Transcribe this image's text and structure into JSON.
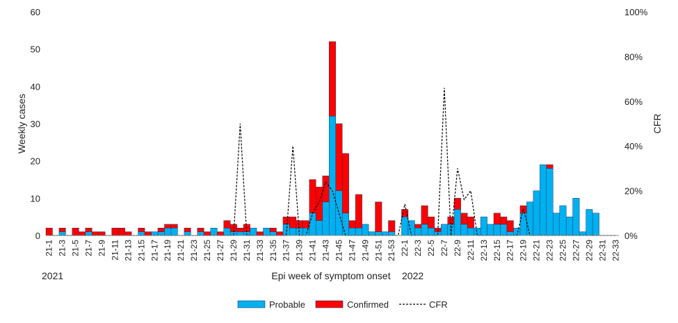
{
  "chart_data": {
    "type": "bar",
    "stacked": true,
    "ylabel": "Weekly cases",
    "y2label": "CFR",
    "xlabel": "Epi week of symptom onset",
    "year_labels": [
      "2021",
      "2022"
    ],
    "ylim": [
      0,
      60
    ],
    "yticks": [
      0,
      10,
      20,
      30,
      40,
      50,
      60
    ],
    "y2lim": [
      0,
      100
    ],
    "y2ticks": [
      "0%",
      "20%",
      "40%",
      "60%",
      "80%",
      "100%"
    ],
    "grid": false,
    "legend_position": "bottom",
    "colors": {
      "probable": "#00B0F0",
      "confirmed": "#FF0000",
      "cfr": "#000000",
      "bar_edge": "#1F3864"
    },
    "categories": [
      "21-1",
      "21-2",
      "21-3",
      "21-4",
      "21-5",
      "21-6",
      "21-7",
      "21-8",
      "21-9",
      "21-10",
      "21-11",
      "21-12",
      "21-13",
      "21-14",
      "21-15",
      "21-16",
      "21-17",
      "21-18",
      "21-19",
      "21-20",
      "21-21",
      "21-22",
      "21-23",
      "21-24",
      "21-25",
      "21-26",
      "21-27",
      "21-28",
      "21-29",
      "21-30",
      "21-31",
      "21-32",
      "21-33",
      "21-34",
      "21-35",
      "21-36",
      "21-37",
      "21-38",
      "21-39",
      "21-40",
      "21-41",
      "21-42",
      "21-43",
      "21-44",
      "21-45",
      "21-46",
      "21-47",
      "21-48",
      "21-49",
      "21-50",
      "21-51",
      "21-52",
      "21-53",
      "21-54",
      "22-1",
      "22-2",
      "22-3",
      "22-4",
      "22-5",
      "22-6",
      "22-7",
      "22-8",
      "22-9",
      "22-10",
      "22-11",
      "22-12",
      "22-13",
      "22-14",
      "22-15",
      "22-16",
      "22-17",
      "22-18",
      "22-19",
      "22-20",
      "22-21",
      "22-22",
      "22-23",
      "22-24",
      "22-25",
      "22-26",
      "22-27",
      "22-28",
      "22-29",
      "22-30",
      "22-31",
      "22-32",
      "22-33"
    ],
    "tick_labels": [
      "21-1",
      "21-3",
      "21-5",
      "21-7",
      "21-9",
      "21-11",
      "21-13",
      "21-15",
      "21-17",
      "21-19",
      "21-21",
      "21-23",
      "21-25",
      "21-27",
      "21-29",
      "21-31",
      "21-33",
      "21-35",
      "21-37",
      "21-39",
      "21-41",
      "21-43",
      "21-45",
      "21-47",
      "21-49",
      "21-51",
      "21-53",
      "22-1",
      "22-3",
      "22-5",
      "22-7",
      "22-9",
      "22-11",
      "22-13",
      "22-15",
      "22-17",
      "22-19",
      "22-21",
      "22-23",
      "22-25",
      "22-27",
      "22-29",
      "22-31",
      "22-33"
    ],
    "series": [
      {
        "name": "Probable",
        "values": [
          0,
          0,
          1,
          0,
          0,
          0,
          1,
          0,
          0,
          0,
          0,
          0,
          0,
          0,
          1,
          0,
          1,
          1,
          2,
          2,
          0,
          1,
          0,
          1,
          0,
          2,
          0,
          2,
          1,
          1,
          1,
          2,
          0,
          2,
          1,
          0,
          3,
          2,
          2,
          2,
          6,
          4,
          9,
          32,
          12,
          6,
          2,
          2,
          3,
          1,
          1,
          1,
          1,
          0,
          5,
          4,
          2,
          3,
          2,
          1,
          3,
          3,
          7,
          3,
          2,
          2,
          5,
          3,
          3,
          3,
          1,
          2,
          6,
          9,
          12,
          19,
          18,
          6,
          8,
          5,
          10,
          1,
          7,
          6,
          0,
          0,
          0
        ]
      },
      {
        "name": "Confirmed",
        "values": [
          2,
          0,
          1,
          0,
          2,
          1,
          1,
          1,
          1,
          0,
          2,
          2,
          1,
          0,
          1,
          1,
          0,
          1,
          1,
          1,
          0,
          1,
          0,
          1,
          1,
          0,
          1,
          2,
          2,
          1,
          2,
          0,
          1,
          0,
          1,
          1,
          2,
          3,
          2,
          2,
          9,
          9,
          7,
          20,
          18,
          16,
          2,
          9,
          0,
          0,
          8,
          0,
          3,
          0,
          2,
          0,
          1,
          5,
          3,
          1,
          0,
          2,
          3,
          3,
          3,
          0,
          0,
          0,
          3,
          2,
          3,
          0,
          2,
          0,
          0,
          0,
          1,
          0,
          0,
          0,
          0,
          0,
          0,
          0,
          0,
          0,
          0
        ]
      },
      {
        "name": "CFR",
        "type": "line",
        "dashed": true,
        "values": [
          0,
          0,
          0,
          0,
          0,
          0,
          0,
          0,
          0,
          0,
          0,
          0,
          0,
          0,
          0,
          0,
          0,
          0,
          0,
          0,
          0,
          0,
          0,
          0,
          0,
          0,
          0,
          0,
          0,
          50,
          0,
          0,
          0,
          0,
          0,
          0,
          0,
          40,
          0,
          0,
          10,
          15,
          24,
          20,
          10,
          0,
          0,
          0,
          0,
          0,
          0,
          0,
          0,
          0,
          14,
          0,
          0,
          0,
          0,
          0,
          66,
          0,
          30,
          16,
          20,
          0,
          0,
          0,
          0,
          0,
          0,
          0,
          12,
          0,
          0,
          0,
          0,
          0,
          0,
          0,
          0,
          0,
          0,
          0,
          0,
          0,
          0
        ]
      }
    ]
  }
}
